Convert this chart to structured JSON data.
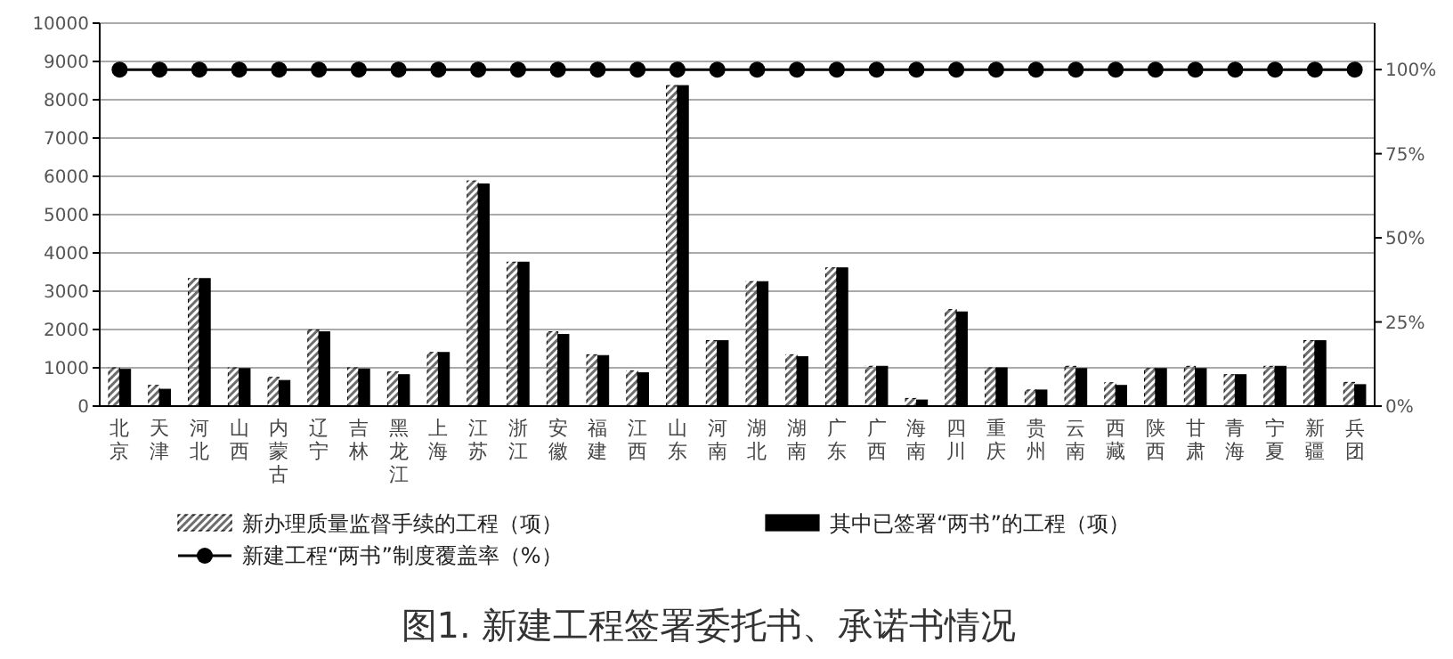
{
  "chart_data": {
    "type": "bar",
    "title": "图1. 新建工程签署委托书、承诺书情况",
    "categories": [
      "北京",
      "天津",
      "河北",
      "山西",
      "内蒙古",
      "辽宁",
      "吉林",
      "黑龙江",
      "上海",
      "江苏",
      "浙江",
      "安徽",
      "福建",
      "江西",
      "山东",
      "河南",
      "湖北",
      "湖南",
      "广东",
      "广西",
      "海南",
      "四川",
      "重庆",
      "贵州",
      "云南",
      "西藏",
      "陕西",
      "甘肃",
      "青海",
      "宁夏",
      "新疆",
      "兵团"
    ],
    "series": [
      {
        "name": "新办理质量监督手续的工程（项）",
        "color": "#6e6e6e",
        "values": [
          1000,
          540,
          3330,
          1000,
          750,
          1990,
          1000,
          890,
          1400,
          5880,
          3760,
          1940,
          1340,
          920,
          8370,
          1710,
          3250,
          1340,
          3610,
          1040,
          200,
          2520,
          1000,
          420,
          1040,
          610,
          980,
          1040,
          820,
          1040,
          1710,
          620
        ]
      },
      {
        "name": "其中已签署“两书”的工程（项）",
        "color": "#000000",
        "values": [
          960,
          440,
          3330,
          980,
          670,
          1940,
          970,
          820,
          1400,
          5800,
          3760,
          1870,
          1320,
          870,
          8370,
          1710,
          3250,
          1290,
          3610,
          1040,
          160,
          2460,
          1000,
          420,
          980,
          540,
          980,
          980,
          820,
          1040,
          1710,
          560
        ]
      },
      {
        "name": "新建工程“两书”制度覆盖率（%）",
        "type": "line",
        "axis": "y2",
        "color": "#000000",
        "values": [
          100,
          100,
          100,
          100,
          100,
          100,
          100,
          100,
          100,
          100,
          100,
          100,
          100,
          100,
          100,
          100,
          100,
          100,
          100,
          100,
          100,
          100,
          100,
          100,
          100,
          100,
          100,
          100,
          100,
          100,
          100,
          100
        ]
      }
    ],
    "ylim": [
      0,
      10000
    ],
    "yticks": [
      0,
      1000,
      2000,
      3000,
      4000,
      5000,
      6000,
      7000,
      8000,
      9000,
      10000
    ],
    "y2lim": [
      0,
      113.8
    ],
    "y2ticks": [
      {
        "value": 0,
        "label": "0%"
      },
      {
        "value": 25,
        "label": "25%"
      },
      {
        "value": 50,
        "label": "50%"
      },
      {
        "value": 75,
        "label": "75%"
      },
      {
        "value": 100,
        "label": "100%"
      }
    ],
    "grid": "y",
    "legend": "bottom",
    "marker": "circle"
  }
}
